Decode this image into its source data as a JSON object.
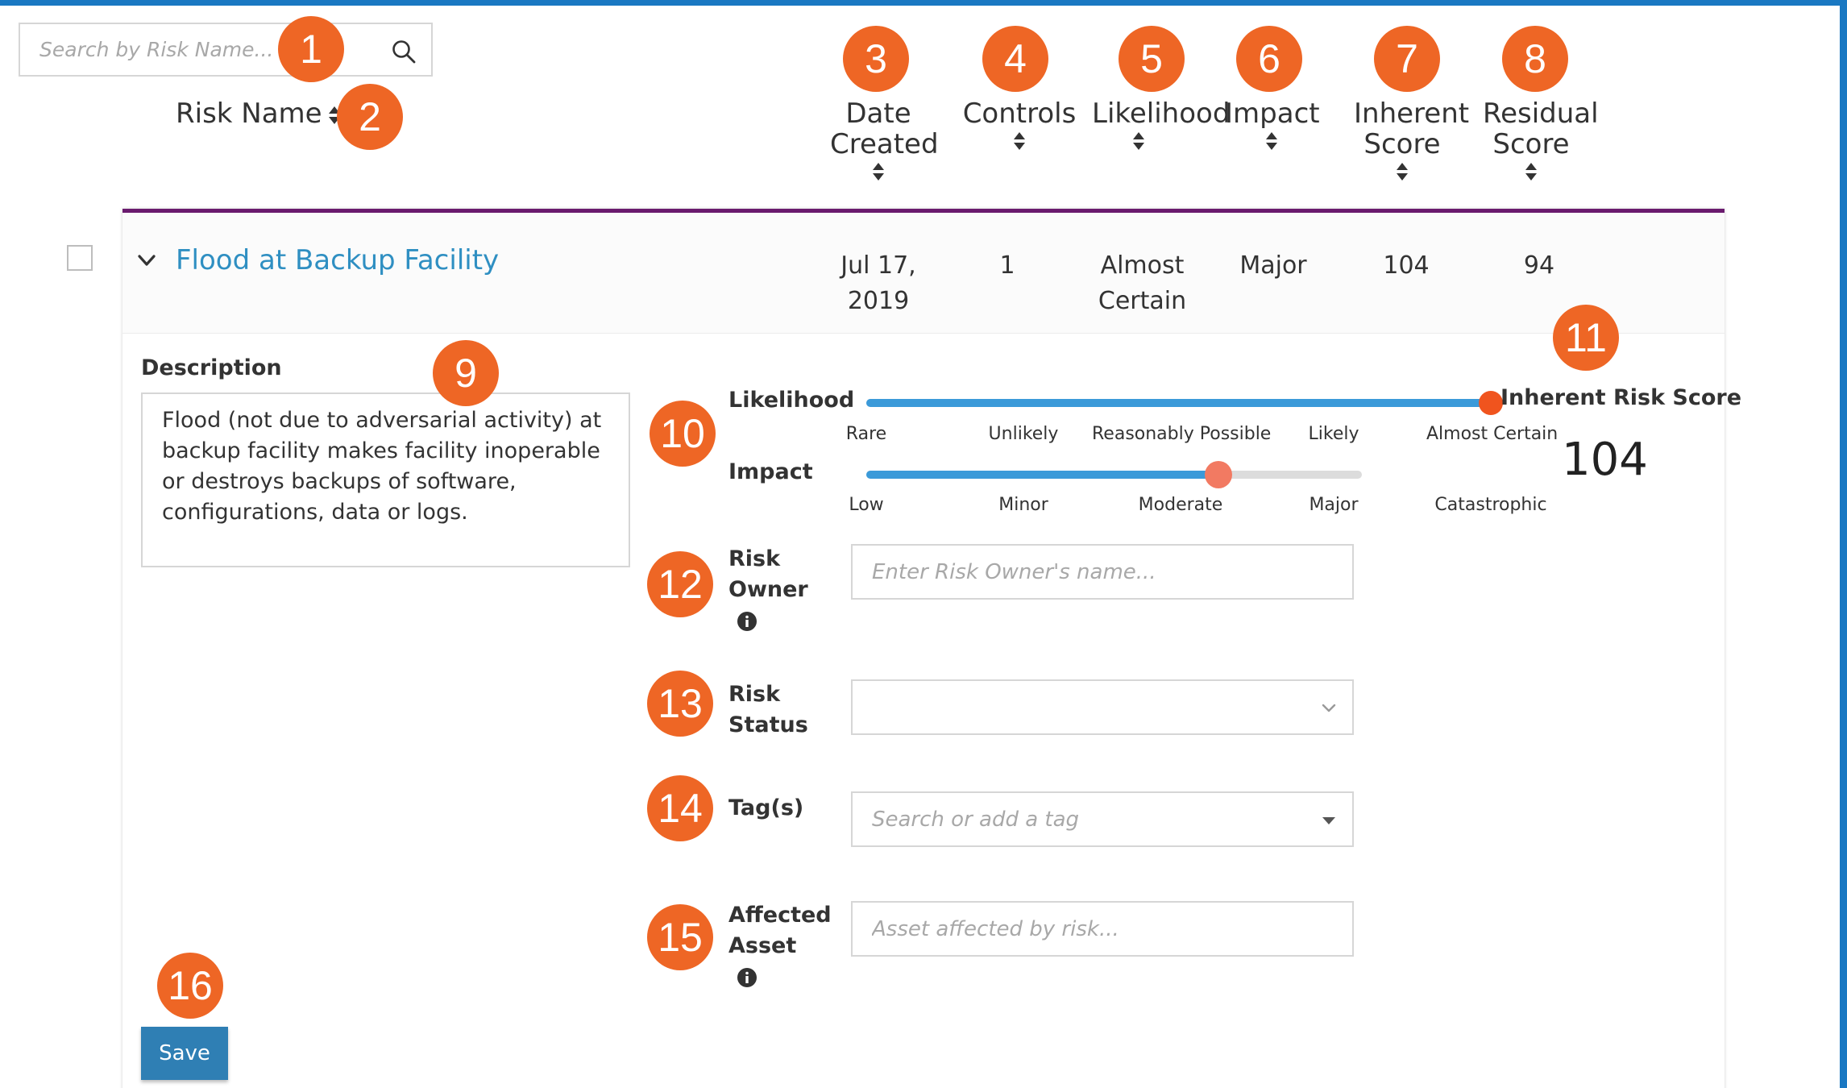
{
  "search": {
    "placeholder": "Search by Risk Name...",
    "icon": "search-icon"
  },
  "columns": {
    "risk_name": "Risk Name",
    "date_created": [
      "Date",
      "Created"
    ],
    "controls": "Controls",
    "likelihood": "Likelihood",
    "impact": "Impact",
    "inherent_score": [
      "Inherent",
      "Score"
    ],
    "residual_score": [
      "Residual",
      "Score"
    ]
  },
  "callouts": [
    "1",
    "2",
    "3",
    "4",
    "5",
    "6",
    "7",
    "8",
    "9",
    "10",
    "11",
    "12",
    "13",
    "14",
    "15",
    "16"
  ],
  "risk": {
    "title": "Flood at Backup Facility",
    "date_created": [
      "Jul 17,",
      "2019"
    ],
    "controls": "1",
    "likelihood": [
      "Almost",
      "Certain"
    ],
    "impact": "Major",
    "inherent_score": "104",
    "residual_score": "94"
  },
  "details": {
    "description_label": "Description",
    "description_text": "Flood (not due to adversarial activity) at backup facility makes facility inoperable or destroys backups of software, configurations, data or logs.",
    "likelihood_label": "Likelihood",
    "impact_label": "Impact",
    "likelihood_scale": [
      "Rare",
      "Unlikely",
      "Reasonably Possible",
      "Likely",
      "Almost Certain"
    ],
    "impact_scale": [
      "Low",
      "Minor",
      "Moderate",
      "Major",
      "Catastrophic"
    ],
    "likelihood_level": 1.0,
    "impact_level": 0.75,
    "inherent_risk_score_label": "Inherent Risk Score",
    "inherent_risk_score_value": "104",
    "risk_owner_label": [
      "Risk",
      "Owner"
    ],
    "risk_owner_placeholder": "Enter Risk Owner's name...",
    "risk_status_label": [
      "Risk",
      "Status"
    ],
    "risk_status_value": "",
    "tags_label": "Tag(s)",
    "tags_placeholder": "Search or add a tag",
    "affected_asset_label": [
      "Affected",
      "Asset"
    ],
    "affected_asset_placeholder": "Asset affected by risk...",
    "save_label": "Save"
  },
  "colors": {
    "accent_blue": "#1a78c2",
    "link_blue": "#2f8fc2",
    "slider_blue": "#3b9ad9",
    "callout_orange": "#ee6625",
    "card_top_border": "#6a1b6e",
    "likelihood_thumb": "#f0541e",
    "impact_thumb": "#f27a62",
    "save_button": "#2f7fb4"
  }
}
